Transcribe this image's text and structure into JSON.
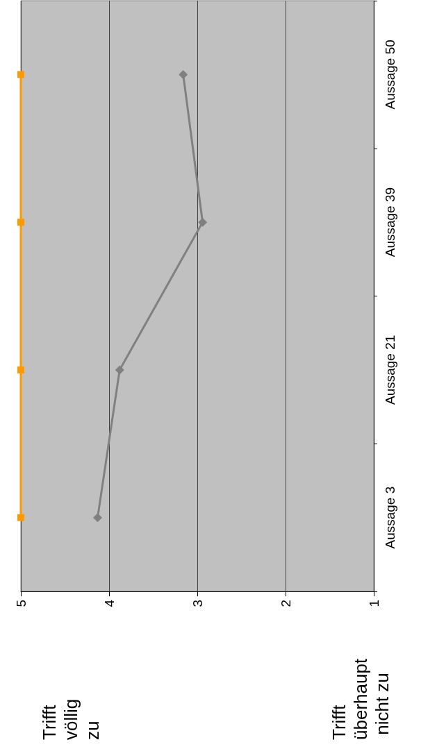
{
  "chart_data": {
    "type": "line",
    "orientation": "horizontal",
    "categories": [
      "Aussage 50",
      "Aussage 39",
      "Aussage 21",
      "Aussage 3"
    ],
    "series": [
      {
        "color": "#ff9900",
        "values": [
          5,
          5,
          5,
          5
        ],
        "marker": "square"
      },
      {
        "color": "#808080",
        "values": [
          3.16,
          2.94,
          3.88,
          4.13
        ],
        "marker": "diamond"
      }
    ],
    "xlim": [
      5,
      1
    ],
    "xticks": [
      5,
      4,
      3,
      2,
      1
    ],
    "grid": "x",
    "annotations": [
      "Trifft völlig zu",
      "Trifft überhaupt nicht zu"
    ]
  }
}
